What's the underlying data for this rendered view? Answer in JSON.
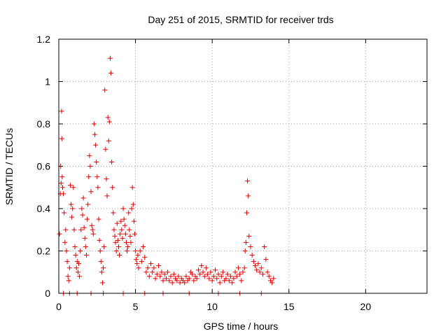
{
  "chart_data": {
    "type": "scatter",
    "title": "Day 251 of 2015, SRMTID for receiver trds",
    "xlabel": "GPS time / hours",
    "ylabel": "SRMTID / TECUs",
    "xlim": [
      0,
      24
    ],
    "ylim": [
      0,
      1.2
    ],
    "xticks": [
      0,
      5,
      10,
      15,
      20
    ],
    "xtick_labels": [
      "0",
      "5",
      "10",
      "15",
      "20"
    ],
    "yticks": [
      0,
      0.2,
      0.4,
      0.6,
      0.8,
      1,
      1.2
    ],
    "ytick_labels": [
      "0",
      "0.2",
      "0.4",
      "0.6",
      "0.8",
      "1",
      "1.2"
    ],
    "grid": true,
    "marker": "plus",
    "colors": {
      "series": "#e00000",
      "grid": "#a0a0a0",
      "axis": "#000000"
    },
    "series": [
      {
        "name": "SRMTID",
        "points": [
          [
            0.05,
            0.28
          ],
          [
            0.1,
            0.47
          ],
          [
            0.12,
            0.6
          ],
          [
            0.15,
            0.52
          ],
          [
            0.18,
            0.86
          ],
          [
            0.2,
            0.73
          ],
          [
            0.22,
            0.55
          ],
          [
            0.25,
            0.5
          ],
          [
            0.3,
            0.47
          ],
          [
            0.35,
            0.38
          ],
          [
            0.4,
            0.24
          ],
          [
            0.45,
            0.3
          ],
          [
            0.5,
            0.2
          ],
          [
            0.55,
            0.15
          ],
          [
            0.6,
            0.08
          ],
          [
            0.65,
            0.06
          ],
          [
            0.7,
            0.12
          ],
          [
            0.75,
            0.51
          ],
          [
            0.8,
            0.42
          ],
          [
            0.85,
            0.36
          ],
          [
            0.9,
            0.4
          ],
          [
            0.95,
            0.5
          ],
          [
            1.0,
            0.3
          ],
          [
            1.05,
            0.22
          ],
          [
            1.1,
            0.18
          ],
          [
            1.15,
            0.12
          ],
          [
            1.2,
            0.15
          ],
          [
            1.25,
            0.1
          ],
          [
            1.3,
            0.14
          ],
          [
            1.35,
            0.08
          ],
          [
            1.4,
            0.2
          ],
          [
            1.45,
            0.3
          ],
          [
            1.5,
            0.4
          ],
          [
            1.55,
            0.37
          ],
          [
            1.6,
            0.45
          ],
          [
            1.65,
            0.31
          ],
          [
            1.7,
            0.26
          ],
          [
            1.75,
            0.22
          ],
          [
            1.8,
            0.18
          ],
          [
            1.85,
            0.35
          ],
          [
            1.9,
            0.42
          ],
          [
            1.95,
            0.55
          ],
          [
            2.0,
            0.65
          ],
          [
            2.05,
            0.6
          ],
          [
            2.1,
            0.48
          ],
          [
            2.15,
            0.32
          ],
          [
            2.2,
            0.3
          ],
          [
            2.25,
            0.28
          ],
          [
            2.3,
            0.8
          ],
          [
            2.35,
            0.75
          ],
          [
            2.4,
            0.7
          ],
          [
            2.45,
            0.62
          ],
          [
            2.5,
            0.55
          ],
          [
            2.55,
            0.5
          ],
          [
            2.6,
            0.35
          ],
          [
            2.65,
            0.25
          ],
          [
            2.7,
            0.2
          ],
          [
            2.75,
            0.15
          ],
          [
            2.8,
            0.1
          ],
          [
            2.85,
            0.05
          ],
          [
            2.9,
            0.12
          ],
          [
            2.95,
            0.22
          ],
          [
            3.0,
            0.96
          ],
          [
            3.05,
            0.68
          ],
          [
            3.1,
            0.54
          ],
          [
            3.15,
            0.46
          ],
          [
            3.2,
            0.83
          ],
          [
            3.25,
            0.72
          ],
          [
            3.3,
            0.81
          ],
          [
            3.35,
            1.11
          ],
          [
            3.4,
            1.04
          ],
          [
            3.45,
            0.62
          ],
          [
            3.5,
            0.5
          ],
          [
            3.55,
            0.38
          ],
          [
            3.6,
            0.3
          ],
          [
            3.65,
            0.27
          ],
          [
            3.7,
            0.24
          ],
          [
            3.75,
            0.2
          ],
          [
            3.8,
            0.33
          ],
          [
            3.85,
            0.25
          ],
          [
            3.9,
            0.22
          ],
          [
            3.95,
            0.18
          ],
          [
            4.0,
            0.28
          ],
          [
            4.05,
            0.34
          ],
          [
            4.1,
            0.3
          ],
          [
            4.15,
            0.26
          ],
          [
            4.2,
            0.4
          ],
          [
            4.25,
            0.35
          ],
          [
            4.3,
            0.32
          ],
          [
            4.35,
            0.28
          ],
          [
            4.4,
            0.24
          ],
          [
            4.45,
            0.2
          ],
          [
            4.5,
            0.22
          ],
          [
            4.55,
            0.38
          ],
          [
            4.6,
            0.3
          ],
          [
            4.65,
            0.27
          ],
          [
            4.7,
            0.24
          ],
          [
            4.75,
            0.4
          ],
          [
            4.8,
            0.5
          ],
          [
            4.85,
            0.42
          ],
          [
            4.9,
            0.34
          ],
          [
            4.95,
            0.28
          ],
          [
            5.0,
            0.2
          ],
          [
            5.05,
            0.16
          ],
          [
            5.1,
            0.14
          ],
          [
            5.15,
            0.18
          ],
          [
            5.2,
            0.12
          ],
          [
            5.3,
            0.2
          ],
          [
            5.4,
            0.15
          ],
          [
            5.5,
            0.22
          ],
          [
            5.6,
            0.17
          ],
          [
            5.7,
            0.1
          ],
          [
            5.8,
            0.12
          ],
          [
            5.9,
            0.08
          ],
          [
            6.0,
            0.14
          ],
          [
            6.1,
            0.1
          ],
          [
            6.2,
            0.12
          ],
          [
            6.3,
            0.07
          ],
          [
            6.4,
            0.09
          ],
          [
            6.5,
            0.13
          ],
          [
            6.6,
            0.08
          ],
          [
            6.7,
            0.1
          ],
          [
            6.8,
            0.06
          ],
          [
            6.9,
            0.09
          ],
          [
            7.0,
            0.07
          ],
          [
            7.1,
            0.1
          ],
          [
            7.2,
            0.06
          ],
          [
            7.3,
            0.08
          ],
          [
            7.4,
            0.05
          ],
          [
            7.5,
            0.09
          ],
          [
            7.6,
            0.07
          ],
          [
            7.7,
            0.06
          ],
          [
            7.8,
            0.08
          ],
          [
            7.9,
            0.05
          ],
          [
            8.0,
            0.07
          ],
          [
            8.1,
            0.06
          ],
          [
            8.2,
            0.05
          ],
          [
            8.3,
            0.08
          ],
          [
            8.4,
            0.06
          ],
          [
            8.5,
            0.07
          ],
          [
            8.6,
            0.1
          ],
          [
            8.7,
            0.09
          ],
          [
            8.8,
            0.06
          ],
          [
            8.9,
            0.08
          ],
          [
            9.0,
            0.07
          ],
          [
            9.1,
            0.11
          ],
          [
            9.2,
            0.09
          ],
          [
            9.3,
            0.13
          ],
          [
            9.4,
            0.1
          ],
          [
            9.5,
            0.08
          ],
          [
            9.6,
            0.12
          ],
          [
            9.7,
            0.09
          ],
          [
            9.8,
            0.07
          ],
          [
            9.9,
            0.1
          ],
          [
            10.0,
            0.06
          ],
          [
            10.1,
            0.08
          ],
          [
            10.2,
            0.11
          ],
          [
            10.3,
            0.07
          ],
          [
            10.4,
            0.09
          ],
          [
            10.5,
            0.05
          ],
          [
            10.6,
            0.08
          ],
          [
            10.7,
            0.1
          ],
          [
            10.8,
            0.06
          ],
          [
            10.9,
            0.07
          ],
          [
            11.0,
            0.09
          ],
          [
            11.1,
            0.06
          ],
          [
            11.2,
            0.08
          ],
          [
            11.3,
            0.05
          ],
          [
            11.4,
            0.07
          ],
          [
            11.5,
            0.1
          ],
          [
            11.6,
            0.08
          ],
          [
            11.7,
            0.12
          ],
          [
            11.8,
            0.09
          ],
          [
            11.9,
            0.06
          ],
          [
            12.0,
            0.1
          ],
          [
            12.1,
            0.12
          ],
          [
            12.15,
            0.2
          ],
          [
            12.2,
            0.24
          ],
          [
            12.25,
            0.38
          ],
          [
            12.3,
            0.53
          ],
          [
            12.35,
            0.46
          ],
          [
            12.4,
            0.27
          ],
          [
            12.5,
            0.22
          ],
          [
            12.6,
            0.18
          ],
          [
            12.7,
            0.15
          ],
          [
            12.8,
            0.13
          ],
          [
            12.9,
            0.11
          ],
          [
            13.0,
            0.14
          ],
          [
            13.1,
            0.1
          ],
          [
            13.2,
            0.12
          ],
          [
            13.3,
            0.09
          ],
          [
            13.4,
            0.22
          ],
          [
            13.5,
            0.16
          ],
          [
            13.6,
            0.1
          ],
          [
            13.7,
            0.08
          ],
          [
            13.8,
            0.06
          ],
          [
            13.9,
            0.05
          ],
          [
            14.0,
            0.07
          ],
          [
            0.3,
            0.0
          ],
          [
            0.7,
            0.0
          ],
          [
            1.2,
            0.0
          ],
          [
            2.1,
            0.0
          ],
          [
            2.9,
            0.0
          ],
          [
            4.2,
            0.0
          ],
          [
            5.6,
            0.0
          ],
          [
            6.8,
            0.0
          ],
          [
            8.5,
            0.0
          ],
          [
            10.4,
            0.0
          ],
          [
            11.8,
            0.0
          ],
          [
            13.2,
            0.0
          ]
        ]
      }
    ]
  }
}
